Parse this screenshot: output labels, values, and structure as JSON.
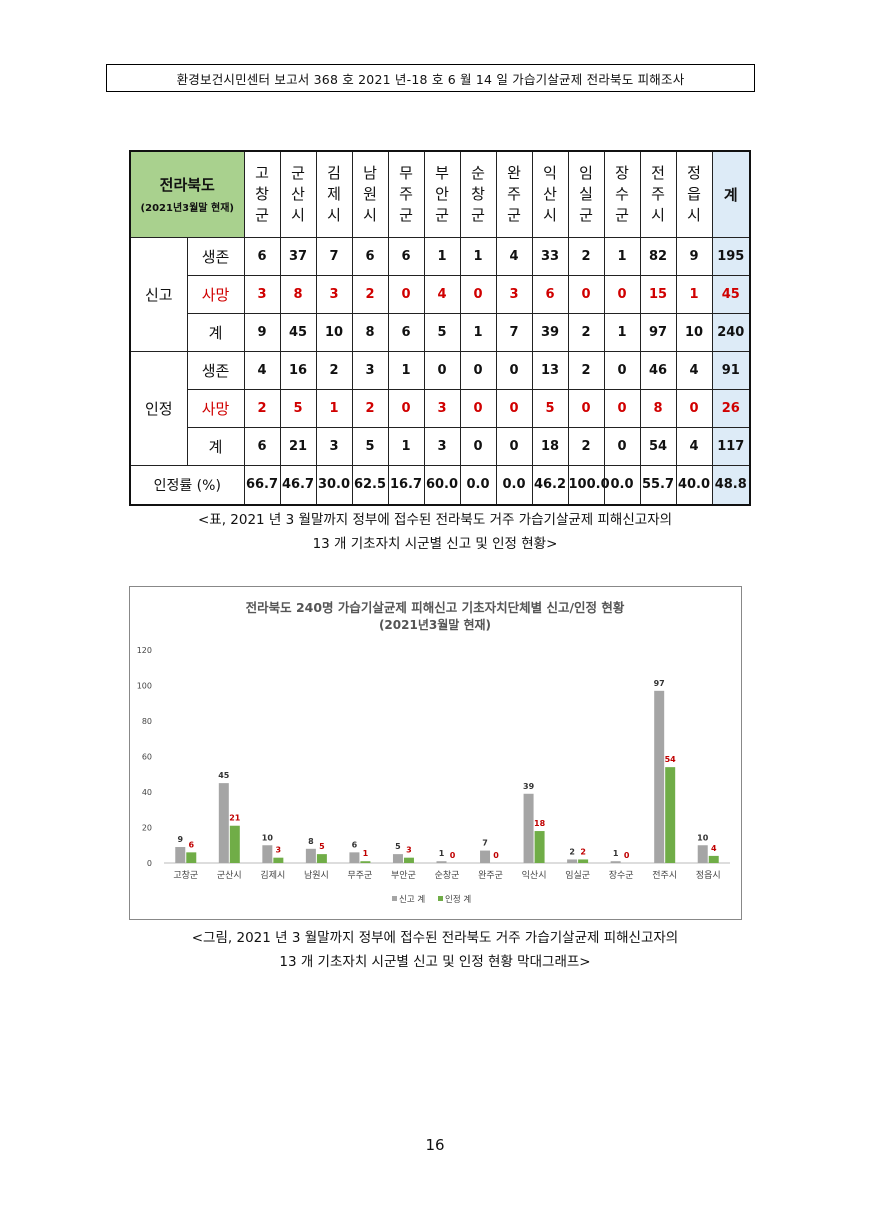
{
  "header": {
    "text": "환경보건시민센터 보고서 368 호 2021 년-18 호 6 월 14 일 가습기살균제 전라북도 피해조사"
  },
  "table": {
    "corner_title": "전라북도",
    "corner_subtitle": "(2021년3월말 현재)",
    "municipalities": [
      [
        "고",
        "창",
        "군"
      ],
      [
        "군",
        "산",
        "시"
      ],
      [
        "김",
        "제",
        "시"
      ],
      [
        "남",
        "원",
        "시"
      ],
      [
        "무",
        "주",
        "군"
      ],
      [
        "부",
        "안",
        "군"
      ],
      [
        "순",
        "창",
        "군"
      ],
      [
        "완",
        "주",
        "군"
      ],
      [
        "익",
        "산",
        "시"
      ],
      [
        "임",
        "실",
        "군"
      ],
      [
        "장",
        "수",
        "군"
      ],
      [
        "전",
        "주",
        "시"
      ],
      [
        "정",
        "읍",
        "시"
      ]
    ],
    "total_header": "계",
    "groups": [
      {
        "label": "신고",
        "rows": [
          {
            "label": "생존",
            "red": false,
            "values": [
              "6",
              "37",
              "7",
              "6",
              "6",
              "1",
              "1",
              "4",
              "33",
              "2",
              "1",
              "82",
              "9"
            ],
            "total": "195"
          },
          {
            "label": "사망",
            "red": true,
            "values": [
              "3",
              "8",
              "3",
              "2",
              "0",
              "4",
              "0",
              "3",
              "6",
              "0",
              "0",
              "15",
              "1"
            ],
            "total": "45"
          },
          {
            "label": "계",
            "red": false,
            "values": [
              "9",
              "45",
              "10",
              "8",
              "6",
              "5",
              "1",
              "7",
              "39",
              "2",
              "1",
              "97",
              "10"
            ],
            "total": "240"
          }
        ]
      },
      {
        "label": "인정",
        "rows": [
          {
            "label": "생존",
            "red": false,
            "values": [
              "4",
              "16",
              "2",
              "3",
              "1",
              "0",
              "0",
              "0",
              "13",
              "2",
              "0",
              "46",
              "4"
            ],
            "total": "91"
          },
          {
            "label": "사망",
            "red": true,
            "values": [
              "2",
              "5",
              "1",
              "2",
              "0",
              "3",
              "0",
              "0",
              "5",
              "0",
              "0",
              "8",
              "0"
            ],
            "total": "26"
          },
          {
            "label": "계",
            "red": false,
            "values": [
              "6",
              "21",
              "3",
              "5",
              "1",
              "3",
              "0",
              "0",
              "18",
              "2",
              "0",
              "54",
              "4"
            ],
            "total": "117"
          }
        ]
      }
    ],
    "rate_row": {
      "label": "인정률 (%)",
      "values": [
        "66.7",
        "46.7",
        "30.0",
        "62.5",
        "16.7",
        "60.0",
        "0.0",
        "0.0",
        "46.2",
        "100.0",
        "0.0",
        "55.7",
        "40.0"
      ],
      "total": "48.8"
    }
  },
  "table_caption": {
    "line1": "<표, 2021 년 3 월말까지 정부에 접수된 전라북도 거주 가습기살균제 피해신고자의",
    "line2": "13 개 기초자치 시군별 신고 및 인정 현황>"
  },
  "chart_data": {
    "type": "bar",
    "title": "전라북도 240명 가습기살균제 피해신고 기초자치단체별 신고/인정 현황",
    "subtitle": "(2021년3월말 현재)",
    "categories": [
      "고창군",
      "군산시",
      "김제시",
      "남원시",
      "무주군",
      "부안군",
      "순창군",
      "완주군",
      "익산시",
      "임실군",
      "장수군",
      "전주시",
      "정읍시"
    ],
    "series": [
      {
        "name": "신고 계",
        "color": "#a5a5a5",
        "label_color": "#333333",
        "values": [
          9,
          45,
          10,
          8,
          6,
          5,
          1,
          7,
          39,
          2,
          1,
          97,
          10
        ]
      },
      {
        "name": "인정 계",
        "color": "#70ad47",
        "label_color": "#c00000",
        "values": [
          6,
          21,
          3,
          5,
          1,
          3,
          0,
          0,
          18,
          2,
          0,
          54,
          4
        ]
      }
    ],
    "ylim": [
      0,
      120
    ],
    "yticks": [
      0,
      20,
      40,
      60,
      80,
      100,
      120
    ],
    "grid": false,
    "legend": "bottom"
  },
  "chart_caption": {
    "line1": "<그림, 2021 년 3 월말까지 정부에 접수된 전라북도 거주 가습기살균제 피해신고자의",
    "line2": "13 개 기초자치 시군별 신고 및 인정 현황 막대그래프>"
  },
  "page_number": "16"
}
